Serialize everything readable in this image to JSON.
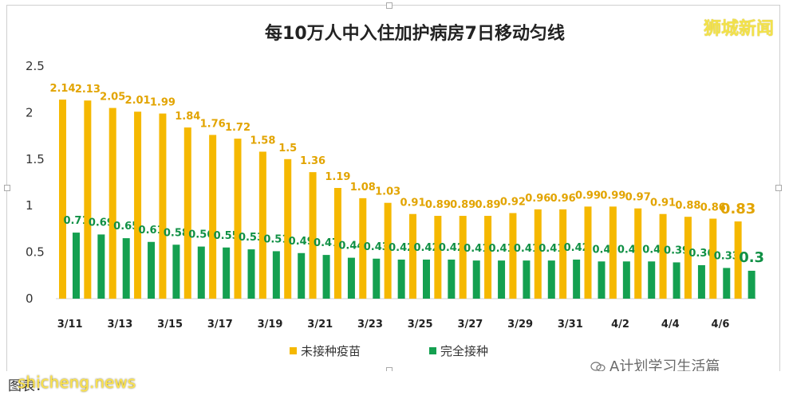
{
  "header": {
    "title": "每10万人中入住加护病房7日移动匀线",
    "brand": "狮城新闻"
  },
  "footer": {
    "source": "图表：",
    "watermark": "shicheng.news",
    "wechat": "A计划学习生活篇"
  },
  "colors": {
    "unvaccinated": "#f5b800",
    "vaccinated": "#14a050",
    "label_unvaccinated": "#e2a400",
    "label_vaccinated": "#109045"
  },
  "chart_data": {
    "type": "bar",
    "categories": [
      "3/11",
      "3/12",
      "3/13",
      "3/14",
      "3/15",
      "3/16",
      "3/17",
      "3/18",
      "3/19",
      "3/20",
      "3/21",
      "3/22",
      "3/23",
      "3/24",
      "3/25",
      "3/26",
      "3/27",
      "3/28",
      "3/29",
      "3/30",
      "3/31",
      "4/1",
      "4/2",
      "4/3",
      "4/4",
      "4/5",
      "4/6",
      "4/7"
    ],
    "tick_labels": [
      "3/11",
      "3/13",
      "3/15",
      "3/17",
      "3/19",
      "3/21",
      "3/23",
      "3/25",
      "3/27",
      "3/29",
      "3/31",
      "4/2",
      "4/4",
      "4/6"
    ],
    "series": [
      {
        "name": "未接种疫苗",
        "values": [
          2.14,
          2.13,
          2.05,
          2.01,
          1.99,
          1.84,
          1.76,
          1.72,
          1.58,
          1.5,
          1.36,
          1.19,
          1.08,
          1.03,
          0.91,
          0.89,
          0.89,
          0.89,
          0.92,
          0.96,
          0.96,
          0.99,
          0.99,
          0.97,
          0.91,
          0.88,
          0.86,
          0.83
        ]
      },
      {
        "name": "完全接种",
        "values": [
          0.71,
          0.69,
          0.65,
          0.61,
          0.58,
          0.56,
          0.55,
          0.53,
          0.51,
          0.49,
          0.47,
          0.44,
          0.43,
          0.42,
          0.42,
          0.42,
          0.41,
          0.41,
          0.41,
          0.41,
          0.42,
          0.4,
          0.4,
          0.4,
          0.39,
          0.36,
          0.33,
          0.3
        ]
      }
    ],
    "y_ticks": [
      "0",
      "0.5",
      "1",
      "1.5",
      "2",
      "2.5"
    ],
    "ylim": [
      0,
      2.5
    ],
    "legend_placement": "bottom",
    "grid": false
  }
}
